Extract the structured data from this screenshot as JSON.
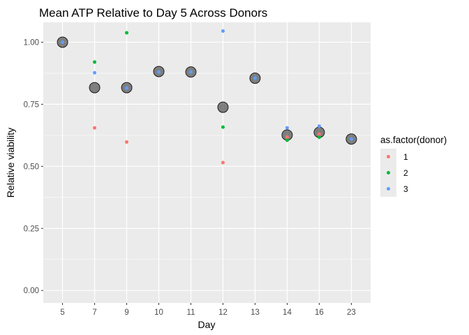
{
  "chart_data": {
    "type": "scatter",
    "title": "Mean ATP Relative to Day 5 Across Donors",
    "xlabel": "Day",
    "ylabel": "Relative viability",
    "categories": [
      "5",
      "7",
      "9",
      "10",
      "11",
      "12",
      "13",
      "14",
      "16",
      "23"
    ],
    "ylim": [
      -0.05,
      1.08
    ],
    "yticks": [
      "0.00",
      "0.25",
      "0.50",
      "0.75",
      "1.00"
    ],
    "grid": true,
    "legend": {
      "title": "as.factor(donor)",
      "position": "right",
      "entries": [
        "1",
        "2",
        "3"
      ]
    },
    "series": [
      {
        "name": "1",
        "color": "#F8766D",
        "points": [
          {
            "x": "5",
            "y": 1.0
          },
          {
            "x": "7",
            "y": 0.655
          },
          {
            "x": "9",
            "y": 0.598
          },
          {
            "x": "10",
            "y": 0.88
          },
          {
            "x": "11",
            "y": 0.88
          },
          {
            "x": "12",
            "y": 0.515
          },
          {
            "x": "13",
            "y": 0.855
          },
          {
            "x": "14",
            "y": 0.618
          },
          {
            "x": "16",
            "y": 0.63
          },
          {
            "x": "23",
            "y": 0.61
          }
        ]
      },
      {
        "name": "2",
        "color": "#00BA38",
        "points": [
          {
            "x": "5",
            "y": 1.0
          },
          {
            "x": "7",
            "y": 0.92
          },
          {
            "x": "9",
            "y": 1.038
          },
          {
            "x": "10",
            "y": 0.88
          },
          {
            "x": "11",
            "y": 0.88
          },
          {
            "x": "12",
            "y": 0.658
          },
          {
            "x": "13",
            "y": 0.855
          },
          {
            "x": "14",
            "y": 0.605
          },
          {
            "x": "16",
            "y": 0.617
          },
          {
            "x": "23",
            "y": 0.61
          }
        ]
      },
      {
        "name": "3",
        "color": "#619CFF",
        "points": [
          {
            "x": "5",
            "y": 1.0
          },
          {
            "x": "7",
            "y": 0.877
          },
          {
            "x": "9",
            "y": 0.815
          },
          {
            "x": "10",
            "y": 0.88
          },
          {
            "x": "11",
            "y": 0.88
          },
          {
            "x": "12",
            "y": 1.045
          },
          {
            "x": "13",
            "y": 0.855
          },
          {
            "x": "14",
            "y": 0.655
          },
          {
            "x": "16",
            "y": 0.662
          },
          {
            "x": "23",
            "y": 0.61
          }
        ]
      }
    ],
    "mean": {
      "color": "#333333",
      "points": [
        {
          "x": "5",
          "y": 1.0
        },
        {
          "x": "7",
          "y": 0.817
        },
        {
          "x": "9",
          "y": 0.817
        },
        {
          "x": "10",
          "y": 0.882
        },
        {
          "x": "11",
          "y": 0.88
        },
        {
          "x": "12",
          "y": 0.738
        },
        {
          "x": "13",
          "y": 0.855
        },
        {
          "x": "14",
          "y": 0.626
        },
        {
          "x": "16",
          "y": 0.637
        },
        {
          "x": "23",
          "y": 0.61
        }
      ]
    }
  }
}
